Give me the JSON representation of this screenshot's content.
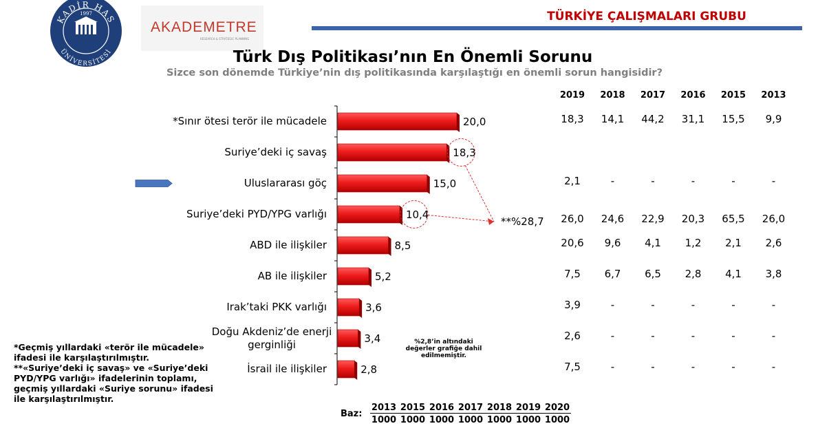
{
  "header": {
    "group_title": "TÜRKİYE ÇALIŞMALARI GRUBU"
  },
  "logos": {
    "seal_text_top": "KADİR HAS",
    "seal_text_bottom": "ÜNİVERSİTESİ",
    "seal_year": "1997",
    "akademetre": "AKADEMETRE",
    "akademetre_sub": "RESEARCH & STRATEGIC PLANNING"
  },
  "chart_data": {
    "type": "bar",
    "orientation": "horizontal",
    "title": "Türk Dış Politikası’nın En Önemli Sorunu",
    "subtitle": "Sizce son dönemde Türkiye’nin dış politikasında karşılaştığı en önemli sorun hangisidir?",
    "categories": [
      "*Sınır ötesi terör ile mücadele",
      "Suriye’deki iç savaş",
      "Uluslararası göç",
      "Suriye’deki PYD/YPG varlığı",
      "ABD ile ilişkiler",
      "AB ile ilişkiler",
      "Irak’taki PKK varlığı",
      "Doğu Akdeniz’de enerji gerginliği",
      "İsrail ile ilişkiler"
    ],
    "value_labels": [
      "20,0",
      "18,3",
      "15,0",
      "10,4",
      "8,5",
      "5,2",
      "3,6",
      "3,4",
      "2,8"
    ],
    "values": [
      20.0,
      18.3,
      15.0,
      10.4,
      8.5,
      5.2,
      3.6,
      3.4,
      2.8
    ],
    "xlim": [
      0,
      20
    ],
    "series_name": "2020",
    "color": "#ee1c1c",
    "highlight": "Uluslararası göç",
    "annotation": "**%28,7",
    "years": [
      "2019",
      "2018",
      "2017",
      "2016",
      "2015",
      "2013"
    ],
    "history": [
      [
        "18,3",
        "14,1",
        "44,2",
        "31,1",
        "15,5",
        "9,9"
      ],
      [
        "",
        "",
        "",
        "",
        "",
        ""
      ],
      [
        "2,1",
        "-",
        "-",
        "-",
        "-",
        "-"
      ],
      [
        "26,0",
        "24,6",
        "22,9",
        "20,3",
        "65,5",
        "26,0"
      ],
      [
        "20,6",
        "9,6",
        "4,1",
        "1,2",
        "2,1",
        "2,6"
      ],
      [
        "7,5",
        "6,7",
        "6,5",
        "2,8",
        "4,1",
        "3,8"
      ],
      [
        "3,9",
        "-",
        "-",
        "-",
        "-",
        "-"
      ],
      [
        "2,6",
        "-",
        "-",
        "-",
        "-",
        "-"
      ],
      [
        "7,5",
        "-",
        "-",
        "-",
        "-",
        "-"
      ]
    ]
  },
  "notes": {
    "footnote1": "*Geçmiş yıllardaki «terör ile mücadele» ifadesi ile karşılaştırılmıştır.",
    "footnote2": "**«Suriye’deki iç savaş» ve «Suriye’deki PYD/YPG varlığı» ifadelerinin toplamı, geçmiş yıllardaki «Suriye sorunu» ifadesi ile karşılaştırılmıştır.",
    "threshold_note": "%2,8’in altındaki değerler grafiğe dahil edilmemiştir."
  },
  "base": {
    "label": "Baz:",
    "years": [
      "2013",
      "2015",
      "2016",
      "2017",
      "2018",
      "2019",
      "2020"
    ],
    "counts": [
      "1000",
      "1000",
      "1000",
      "1000",
      "1000",
      "1000",
      "1000"
    ]
  }
}
